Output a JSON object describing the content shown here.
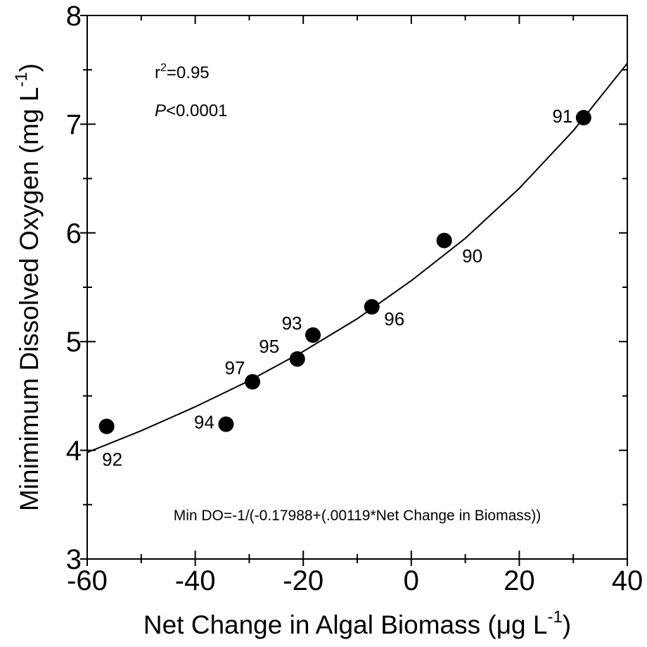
{
  "chart_data": {
    "type": "scatter",
    "x": [
      -56.4,
      -34.3,
      -29.4,
      -21.1,
      -18.2,
      -7.3,
      6.1,
      31.9
    ],
    "values": [
      4.22,
      4.24,
      4.63,
      4.84,
      5.06,
      5.32,
      5.93,
      7.06
    ],
    "point_labels": [
      "92",
      "94",
      "97",
      "95",
      "93",
      "96",
      "90",
      "91"
    ],
    "color": "#000000",
    "fit": {
      "x": [
        -60,
        -50,
        -40,
        -30,
        -20,
        -10,
        0,
        10,
        20,
        30,
        40
      ],
      "values": [
        3.98,
        4.18,
        4.4,
        4.64,
        4.91,
        5.21,
        5.56,
        5.95,
        6.41,
        6.94,
        7.56
      ]
    },
    "xlim": [
      -60,
      40
    ],
    "xticks": [
      -60,
      -40,
      -20,
      0,
      20,
      40
    ],
    "xminorticks": [
      -50,
      -30,
      -10,
      10,
      30
    ],
    "ylim": [
      3,
      8
    ],
    "yticks": [
      3,
      4,
      5,
      6,
      7,
      8
    ],
    "yminorticks": [
      3.5,
      4.5,
      5.5,
      6.5,
      7.5
    ],
    "xlabel": {
      "text": "Net Change in Algal Biomass (μg L",
      "sup": "-1",
      "end": ")"
    },
    "ylabel": {
      "text": "Minimimum Dissolved Oxygen (mg L",
      "sup": "-1",
      "end": ")"
    },
    "r_squared": {
      "base": "r",
      "sup": "2",
      "rest": "=0.95"
    },
    "p_value": {
      "italic": "P",
      "rest": "<0.0001"
    },
    "equation": "Min DO=-1/(-0.17988+(.00119*Net Change in Biomass))"
  }
}
